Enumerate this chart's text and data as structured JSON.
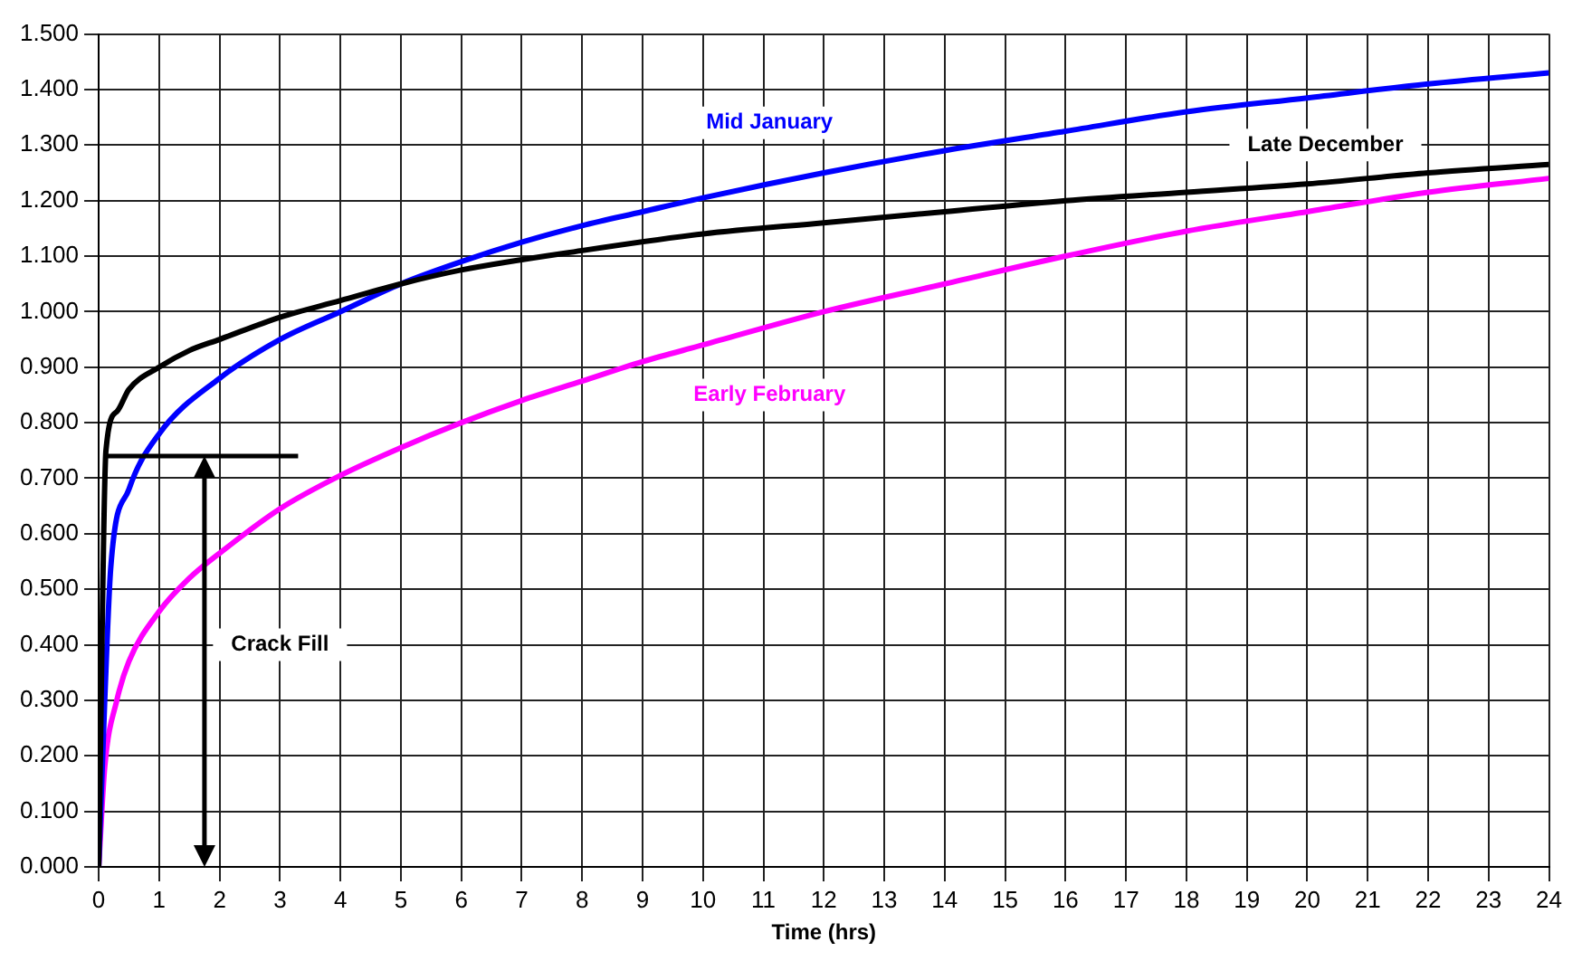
{
  "chart_data": {
    "type": "line",
    "xlabel": "Time (hrs)",
    "xlim": [
      0,
      24
    ],
    "xticks": [
      0,
      1,
      2,
      3,
      4,
      5,
      6,
      7,
      8,
      9,
      10,
      11,
      12,
      13,
      14,
      15,
      16,
      17,
      18,
      19,
      20,
      21,
      22,
      23,
      24
    ],
    "ylim": [
      0,
      1.5
    ],
    "yticks": [
      {
        "value": 0,
        "label": "0.000"
      },
      {
        "value": 0.1,
        "label": "0.100"
      },
      {
        "value": 0.2,
        "label": "0.200"
      },
      {
        "value": 0.3,
        "label": "0.300"
      },
      {
        "value": 0.4,
        "label": "0.400"
      },
      {
        "value": 0.5,
        "label": "0.500"
      },
      {
        "value": 0.6,
        "label": "0.600"
      },
      {
        "value": 0.7,
        "label": "0.700"
      },
      {
        "value": 0.8,
        "label": "0.800"
      },
      {
        "value": 0.9,
        "label": "0.900"
      },
      {
        "value": 1,
        "label": "1.000"
      },
      {
        "value": 1.1,
        "label": "1.100"
      },
      {
        "value": 1.2,
        "label": "1.200"
      },
      {
        "value": 1.3,
        "label": "1.300"
      },
      {
        "value": 1.4,
        "label": "1.400"
      },
      {
        "value": 1.5,
        "label": "1.500"
      }
    ],
    "grid": true,
    "legend": false,
    "marker": "none",
    "line_style": "solid",
    "annotations": [
      "Crack Fill"
    ],
    "series": [
      {
        "name": "Late December",
        "color": "#000000",
        "x": [
          0,
          0.12,
          0.3,
          0.5,
          1,
          1.5,
          2,
          3,
          4,
          5,
          6,
          8,
          10,
          12,
          14,
          16,
          18,
          20,
          22,
          24
        ],
        "values": [
          0,
          0.75,
          0.82,
          0.86,
          0.9,
          0.93,
          0.95,
          0.99,
          1.02,
          1.05,
          1.075,
          1.11,
          1.14,
          1.16,
          1.18,
          1.2,
          1.215,
          1.23,
          1.25,
          1.265
        ]
      },
      {
        "name": "Mid January",
        "color": "#0000ff",
        "x": [
          0,
          0.1,
          0.2,
          0.5,
          1,
          2,
          3,
          4,
          5,
          6,
          7,
          8,
          9,
          10,
          12,
          14,
          16,
          18,
          20,
          22,
          24
        ],
        "values": [
          0,
          0.3,
          0.54,
          0.68,
          0.78,
          0.88,
          0.95,
          1.0,
          1.05,
          1.09,
          1.125,
          1.155,
          1.18,
          1.205,
          1.25,
          1.29,
          1.325,
          1.36,
          1.385,
          1.41,
          1.43
        ]
      },
      {
        "name": "Early February",
        "color": "#ff00ff",
        "x": [
          0,
          0.1,
          0.3,
          0.5,
          1,
          1.5,
          2,
          3,
          4,
          5,
          6,
          7,
          8,
          9,
          10,
          12,
          14,
          16,
          18,
          20,
          22,
          24
        ],
        "values": [
          0,
          0.18,
          0.3,
          0.37,
          0.46,
          0.52,
          0.565,
          0.645,
          0.705,
          0.755,
          0.8,
          0.84,
          0.875,
          0.91,
          0.94,
          1.0,
          1.05,
          1.1,
          1.145,
          1.18,
          1.215,
          1.24
        ]
      }
    ]
  }
}
